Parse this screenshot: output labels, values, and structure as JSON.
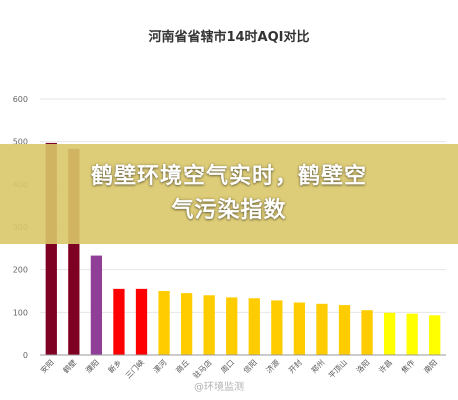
{
  "chart_data": {
    "type": "bar",
    "title": "河南省省辖市14时AQI对比",
    "categories": [
      "安阳",
      "鹤壁",
      "濮阳",
      "新乡",
      "三门峡",
      "漯河",
      "商丘",
      "驻马店",
      "周口",
      "信阳",
      "济源",
      "开封",
      "郑州",
      "平顶山",
      "洛阳",
      "许昌",
      "焦作",
      "南阳"
    ],
    "values": [
      497,
      483,
      233,
      155,
      155,
      150,
      145,
      140,
      135,
      133,
      128,
      123,
      120,
      117,
      105,
      99,
      97,
      93
    ],
    "colors": [
      "#7e0023",
      "#7e0023",
      "#8f3f97",
      "#ff0000",
      "#ff0000",
      "#ffcc00",
      "#ffcc00",
      "#ffcc00",
      "#ffcc00",
      "#ffcc00",
      "#ffcc00",
      "#ffcc00",
      "#ffcc00",
      "#ffcc00",
      "#ffcc00",
      "#ffff00",
      "#ffff00",
      "#ffff00"
    ],
    "yticks": [
      0,
      100,
      200,
      300,
      400,
      500,
      600
    ],
    "ylim": [
      0,
      600
    ],
    "grid": true
  },
  "overlay": {
    "line1": "鹤壁环境空气实时，鹤壁空",
    "line2": "气污染指数"
  },
  "watermark": "@环境监测"
}
